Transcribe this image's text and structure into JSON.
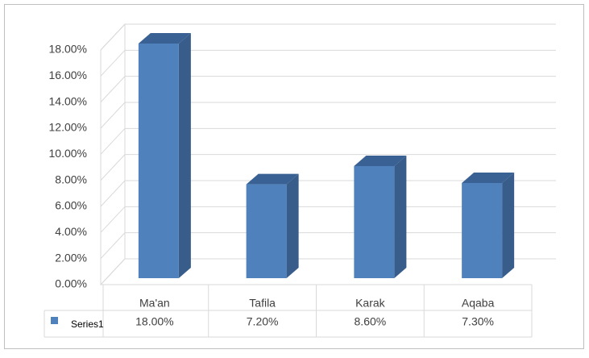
{
  "chart_data": {
    "type": "bar3d",
    "categories": [
      "Ma'an",
      "Tafila",
      "Karak",
      "Aqaba"
    ],
    "series": [
      {
        "name": "Series1",
        "color": "#4f81bd",
        "values": [
          18,
          7.2,
          8.6,
          7.3
        ],
        "value_labels": [
          "18.00%",
          "7.20%",
          "8.60%",
          "7.30%"
        ]
      }
    ],
    "ylim": [
      0,
      18
    ],
    "yticks": [
      {
        "value": 0,
        "label": "0.00%"
      },
      {
        "value": 2,
        "label": "2.00%"
      },
      {
        "value": 4,
        "label": "4.00%"
      },
      {
        "value": 6,
        "label": "6.00%"
      },
      {
        "value": 8,
        "label": "8.00%"
      },
      {
        "value": 10,
        "label": "10.00%"
      },
      {
        "value": 12,
        "label": "12.00%"
      },
      {
        "value": 14,
        "label": "14.00%"
      },
      {
        "value": 16,
        "label": "16.00%"
      },
      {
        "value": 18,
        "label": "18.00%"
      }
    ],
    "grid": true
  }
}
